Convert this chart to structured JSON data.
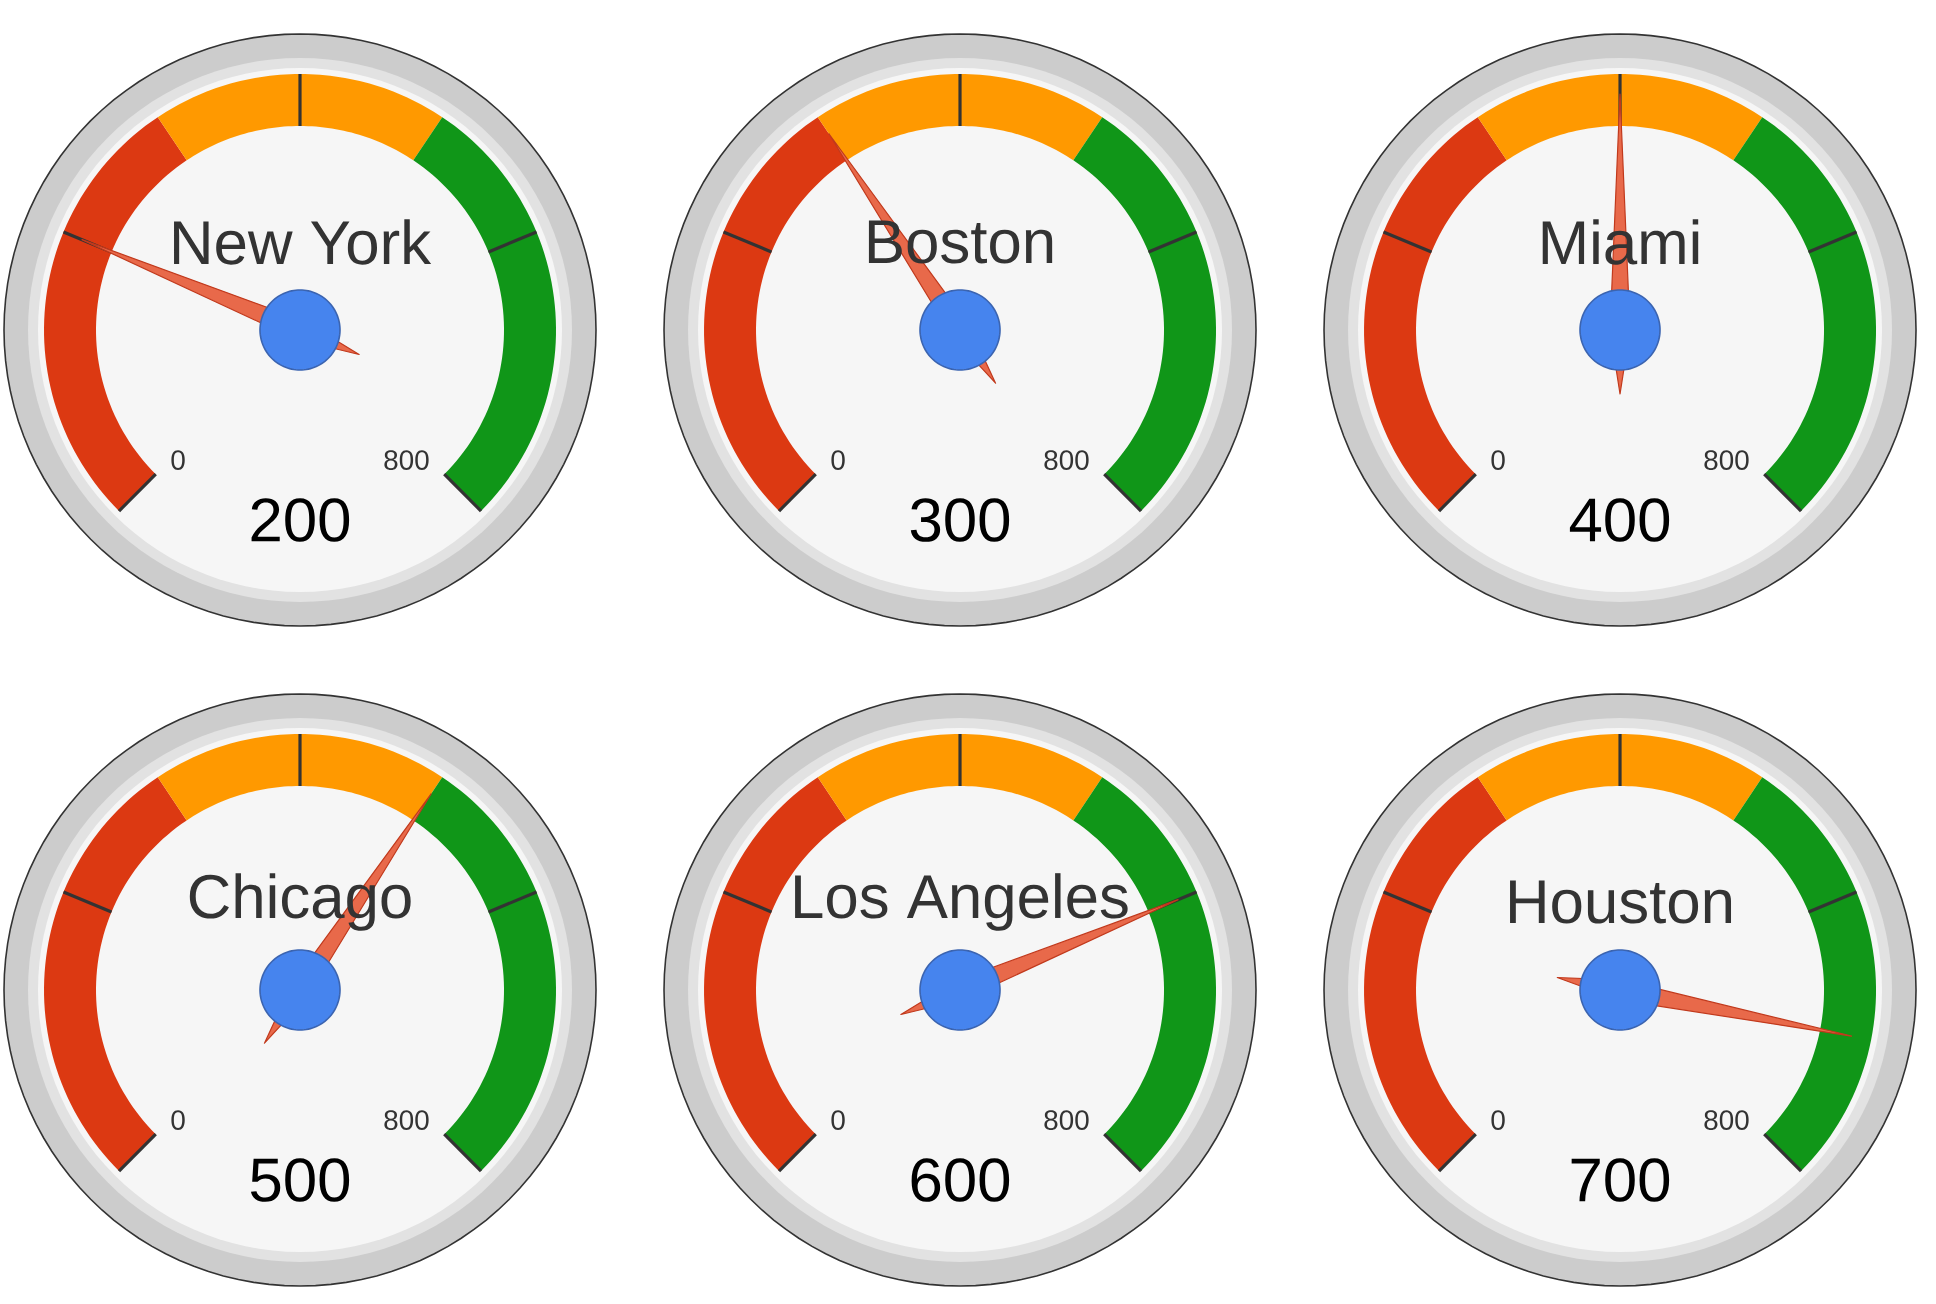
{
  "chart_data": [
    {
      "type": "other",
      "title": "New York",
      "values": [
        200
      ],
      "data_labels": true,
      "annotations": [
        "0",
        "800"
      ]
    },
    {
      "type": "other",
      "title": "Boston",
      "values": [
        300
      ],
      "data_labels": true,
      "annotations": [
        "0",
        "800"
      ]
    },
    {
      "type": "other",
      "title": "Miami",
      "values": [
        400
      ],
      "data_labels": true,
      "annotations": [
        "0",
        "800"
      ]
    },
    {
      "type": "other",
      "title": "Chicago",
      "values": [
        500
      ],
      "data_labels": true,
      "annotations": [
        "0",
        "800"
      ]
    },
    {
      "type": "other",
      "title": "Los Angeles",
      "values": [
        600
      ],
      "data_labels": true,
      "annotations": [
        "0",
        "800"
      ]
    },
    {
      "type": "other",
      "title": "Houston",
      "values": [
        700
      ],
      "data_labels": true,
      "annotations": [
        "0",
        "800"
      ]
    }
  ]
}
